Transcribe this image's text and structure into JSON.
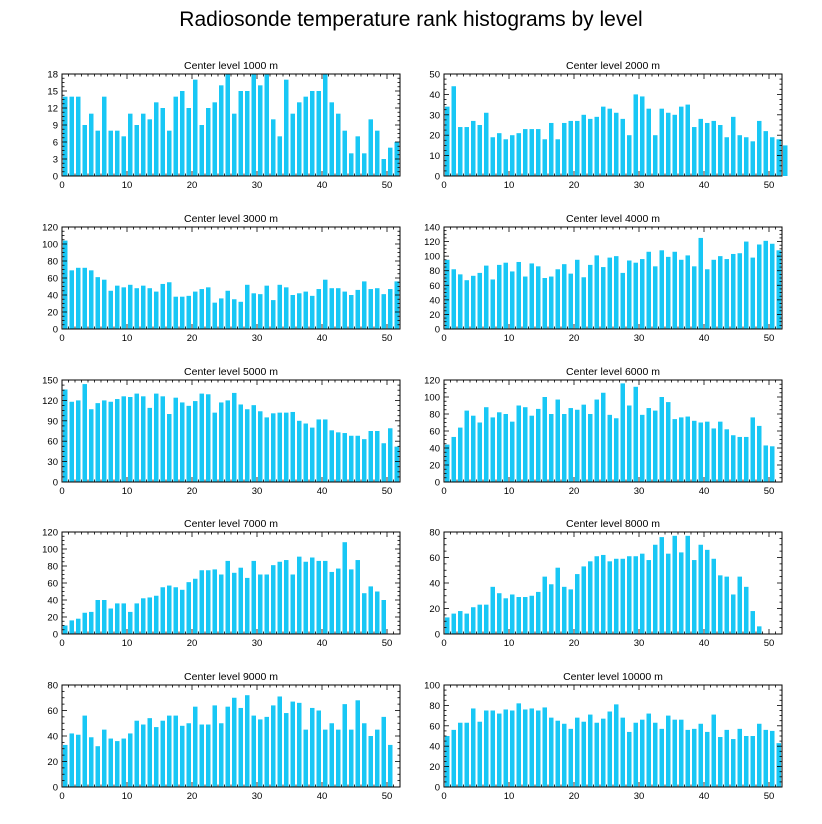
{
  "title": "Radiosonde temperature rank histograms by level",
  "chart_data": [
    {
      "type": "bar",
      "title": "Center level 1000 m",
      "x_start": 0,
      "xlim": [
        0,
        52
      ],
      "ylim": [
        0,
        18
      ],
      "yticks": [
        0,
        3,
        6,
        9,
        12,
        15,
        18
      ],
      "xticks": [
        0,
        10,
        20,
        30,
        40,
        50
      ],
      "values": [
        14,
        14,
        14,
        9,
        11,
        8,
        14,
        8,
        8,
        7,
        11,
        9,
        11,
        10,
        13,
        12,
        8,
        14,
        15,
        12,
        17,
        9,
        12,
        13,
        16,
        18,
        11,
        15,
        15,
        18,
        16,
        18,
        10,
        7,
        17,
        11,
        13,
        14,
        15,
        15,
        18,
        13,
        11,
        8,
        4,
        7,
        4,
        10,
        8,
        3,
        5,
        6
      ]
    },
    {
      "type": "bar",
      "title": "Center level 2000 m",
      "x_start": 0,
      "xlim": [
        0,
        52
      ],
      "ylim": [
        0,
        50
      ],
      "yticks": [
        0,
        10,
        20,
        30,
        40,
        50
      ],
      "xticks": [
        0,
        10,
        20,
        30,
        40,
        50
      ],
      "values": [
        34,
        44,
        24,
        24,
        27,
        25,
        31,
        19,
        21,
        18,
        20,
        21,
        23,
        23,
        23,
        18,
        26,
        18,
        26,
        27,
        27,
        30,
        28,
        29,
        34,
        33,
        31,
        28,
        20,
        40,
        39,
        33,
        20,
        33,
        31,
        30,
        34,
        35,
        24,
        28,
        26,
        27,
        25,
        19,
        29,
        20,
        19,
        17,
        27,
        22,
        19,
        18,
        15
      ]
    },
    {
      "type": "bar",
      "title": "Center level 3000 m",
      "x_start": 0,
      "xlim": [
        0,
        52
      ],
      "ylim": [
        0,
        120
      ],
      "yticks": [
        0,
        20,
        40,
        60,
        80,
        100,
        120
      ],
      "xticks": [
        0,
        10,
        20,
        30,
        40,
        50
      ],
      "values": [
        104,
        69,
        72,
        72,
        69,
        61,
        58,
        45,
        51,
        49,
        52,
        48,
        51,
        48,
        44,
        53,
        55,
        38,
        38,
        39,
        44,
        47,
        49,
        31,
        36,
        45,
        35,
        32,
        52,
        42,
        41,
        51,
        34,
        52,
        49,
        40,
        42,
        44,
        39,
        47,
        58,
        48,
        48,
        44,
        40,
        46,
        56,
        47,
        48,
        41,
        47,
        56
      ]
    },
    {
      "type": "bar",
      "title": "Center level 4000 m",
      "x_start": 0,
      "xlim": [
        0,
        52
      ],
      "ylim": [
        0,
        140
      ],
      "yticks": [
        0,
        20,
        40,
        60,
        80,
        100,
        120,
        140
      ],
      "xticks": [
        0,
        10,
        20,
        30,
        40,
        50
      ],
      "values": [
        95,
        82,
        75,
        67,
        73,
        77,
        87,
        68,
        88,
        91,
        79,
        92,
        72,
        90,
        86,
        70,
        72,
        82,
        89,
        76,
        95,
        71,
        88,
        101,
        85,
        98,
        100,
        77,
        94,
        91,
        96,
        106,
        86,
        108,
        99,
        106,
        95,
        101,
        86,
        125,
        82,
        95,
        100,
        96,
        103,
        104,
        120,
        98,
        116,
        121,
        117,
        108
      ]
    },
    {
      "type": "bar",
      "title": "Center level 5000 m",
      "x_start": 0,
      "xlim": [
        0,
        52
      ],
      "ylim": [
        0,
        150
      ],
      "yticks": [
        0,
        30,
        60,
        90,
        120,
        150
      ],
      "xticks": [
        0,
        10,
        20,
        30,
        40,
        50
      ],
      "values": [
        136,
        118,
        120,
        144,
        107,
        116,
        120,
        118,
        122,
        126,
        125,
        130,
        126,
        109,
        130,
        126,
        100,
        124,
        117,
        112,
        119,
        130,
        129,
        102,
        117,
        120,
        131,
        114,
        107,
        113,
        104,
        95,
        101,
        102,
        102,
        103,
        90,
        86,
        80,
        92,
        92,
        76,
        73,
        72,
        68,
        68,
        63,
        75,
        75,
        57,
        79,
        52
      ]
    },
    {
      "type": "bar",
      "title": "Center level 6000 m",
      "x_start": 0,
      "xlim": [
        0,
        52
      ],
      "ylim": [
        0,
        120
      ],
      "yticks": [
        0,
        20,
        40,
        60,
        80,
        100,
        120
      ],
      "xticks": [
        0,
        10,
        20,
        30,
        40,
        50
      ],
      "values": [
        44,
        53,
        64,
        84,
        78,
        70,
        88,
        76,
        82,
        80,
        71,
        90,
        88,
        78,
        86,
        100,
        80,
        97,
        80,
        87,
        85,
        91,
        80,
        97,
        105,
        79,
        75,
        116,
        90,
        112,
        79,
        87,
        84,
        100,
        94,
        74,
        76,
        77,
        72,
        70,
        71,
        63,
        71,
        62,
        55,
        53,
        53,
        76,
        66,
        43,
        42
      ]
    },
    {
      "type": "bar",
      "title": "Center level 7000 m",
      "x_start": 0,
      "xlim": [
        0,
        52
      ],
      "ylim": [
        0,
        120
      ],
      "yticks": [
        0,
        20,
        40,
        60,
        80,
        100,
        120
      ],
      "xticks": [
        0,
        10,
        20,
        30,
        40,
        50
      ],
      "values": [
        10,
        16,
        18,
        25,
        26,
        40,
        40,
        30,
        36,
        36,
        26,
        36,
        42,
        43,
        45,
        55,
        57,
        55,
        52,
        61,
        65,
        75,
        75,
        76,
        70,
        86,
        72,
        78,
        66,
        86,
        70,
        70,
        81,
        85,
        87,
        70,
        91,
        85,
        90,
        86,
        86,
        73,
        77,
        108,
        76,
        87,
        48,
        56,
        50,
        40
      ]
    },
    {
      "type": "bar",
      "title": "Center level 8000 m",
      "x_start": 0,
      "xlim": [
        0,
        52
      ],
      "ylim": [
        0,
        80
      ],
      "yticks": [
        0,
        20,
        40,
        60,
        80
      ],
      "xticks": [
        0,
        10,
        20,
        30,
        40,
        50
      ],
      "values": [
        13,
        16,
        18,
        16,
        21,
        23,
        23,
        37,
        32,
        28,
        31,
        29,
        29,
        30,
        33,
        45,
        39,
        52,
        37,
        35,
        47,
        53,
        57,
        61,
        62,
        57,
        59,
        59,
        61,
        61,
        63,
        58,
        70,
        76,
        63,
        77,
        64,
        77,
        58,
        70,
        66,
        59,
        46,
        45,
        31,
        45,
        37,
        18,
        6
      ]
    },
    {
      "type": "bar",
      "title": "Center level 9000 m",
      "x_start": 0,
      "xlim": [
        0,
        52
      ],
      "ylim": [
        0,
        80
      ],
      "yticks": [
        0,
        20,
        40,
        60,
        80
      ],
      "xticks": [
        0,
        10,
        20,
        30,
        40,
        50
      ],
      "values": [
        33,
        42,
        41,
        56,
        39,
        32,
        45,
        38,
        36,
        38,
        42,
        52,
        49,
        54,
        47,
        52,
        56,
        56,
        48,
        50,
        63,
        49,
        49,
        64,
        50,
        63,
        70,
        62,
        72,
        56,
        53,
        55,
        64,
        71,
        58,
        67,
        66,
        45,
        62,
        60,
        45,
        50,
        45,
        65,
        45,
        68,
        50,
        40,
        45,
        55,
        33
      ]
    },
    {
      "type": "bar",
      "title": "Center level 10000 m",
      "x_start": 0,
      "xlim": [
        0,
        52
      ],
      "ylim": [
        0,
        100
      ],
      "yticks": [
        0,
        20,
        40,
        60,
        80,
        100
      ],
      "xticks": [
        0,
        10,
        20,
        30,
        40,
        50
      ],
      "values": [
        50,
        56,
        63,
        63,
        77,
        64,
        75,
        75,
        72,
        76,
        75,
        82,
        76,
        77,
        75,
        78,
        68,
        65,
        62,
        57,
        68,
        64,
        71,
        63,
        67,
        74,
        81,
        68,
        54,
        63,
        66,
        72,
        63,
        57,
        70,
        66,
        66,
        56,
        57,
        62,
        54,
        71,
        49,
        56,
        47,
        57,
        50,
        50,
        62,
        56,
        55,
        43
      ]
    }
  ]
}
